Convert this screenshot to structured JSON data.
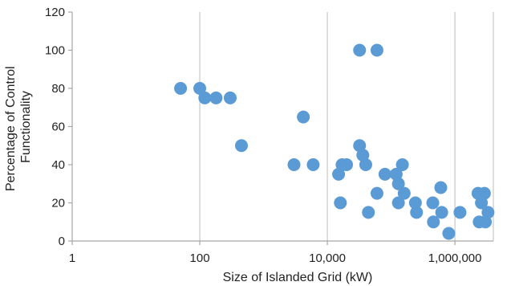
{
  "chart_data": {
    "type": "scatter",
    "title": "",
    "xlabel": "Size of Islanded Grid (kW)",
    "ylabel_lines": [
      "Percentage of Control",
      "Functionality"
    ],
    "x_scale": "log",
    "xlim": [
      1,
      4000000
    ],
    "ylim": [
      0,
      120
    ],
    "x_ticks": [
      1,
      100,
      10000,
      1000000
    ],
    "x_tick_labels": [
      "1",
      "100",
      "10,000",
      "1,000,000"
    ],
    "y_ticks": [
      0,
      20,
      40,
      60,
      80,
      100,
      120
    ],
    "y_tick_labels": [
      "0",
      "20",
      "40",
      "60",
      "80",
      "100",
      "120"
    ],
    "grid": "vertical",
    "legend": "none",
    "colors": {
      "marker": "#5b9bd5",
      "grid": "#c8c8c8",
      "axis": "#a6a6a6"
    },
    "series": [
      {
        "points": [
          [
            50,
            80
          ],
          [
            100,
            80
          ],
          [
            120,
            75
          ],
          [
            180,
            75
          ],
          [
            300,
            75
          ],
          [
            450,
            50
          ],
          [
            3000,
            40
          ],
          [
            4200,
            65
          ],
          [
            6000,
            40
          ],
          [
            15000,
            35
          ],
          [
            16000,
            20
          ],
          [
            17000,
            40
          ],
          [
            20000,
            40
          ],
          [
            32000,
            100
          ],
          [
            32000,
            50
          ],
          [
            36000,
            45
          ],
          [
            40000,
            40
          ],
          [
            44000,
            15
          ],
          [
            60000,
            100
          ],
          [
            60000,
            25
          ],
          [
            80000,
            35
          ],
          [
            120000,
            35
          ],
          [
            130000,
            30
          ],
          [
            130000,
            20
          ],
          [
            150000,
            40
          ],
          [
            160000,
            25
          ],
          [
            240000,
            20
          ],
          [
            250000,
            15
          ],
          [
            450000,
            20
          ],
          [
            460000,
            10
          ],
          [
            600000,
            28
          ],
          [
            620000,
            15
          ],
          [
            800000,
            4
          ],
          [
            1200000,
            15
          ],
          [
            2300000,
            25
          ],
          [
            2400000,
            10
          ],
          [
            2600000,
            20
          ],
          [
            2900000,
            25
          ],
          [
            3000000,
            10
          ],
          [
            3300000,
            15
          ]
        ]
      }
    ]
  }
}
